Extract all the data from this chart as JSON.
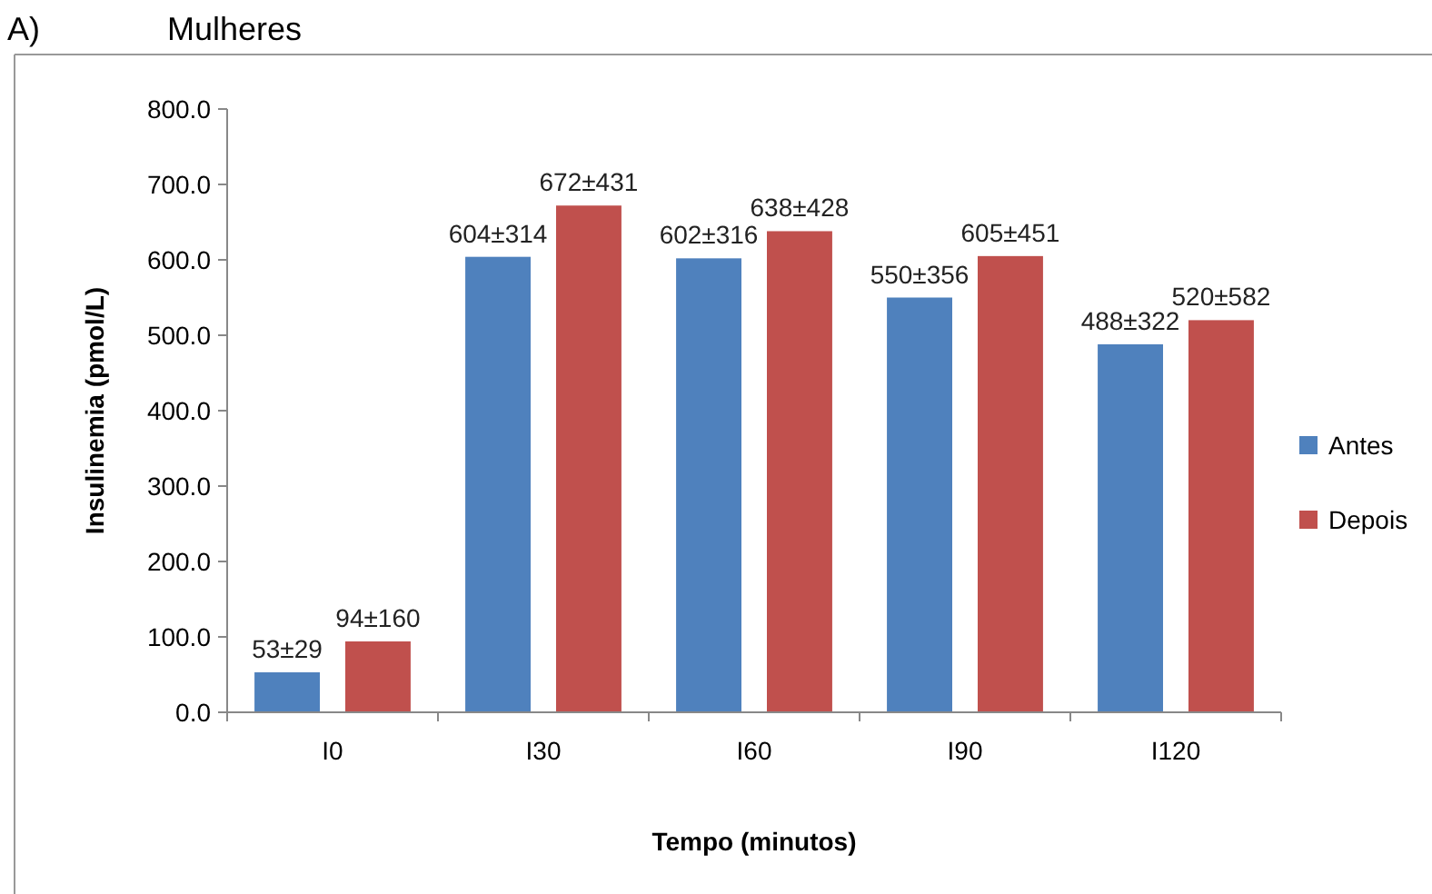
{
  "chart_data": {
    "type": "bar",
    "title": "Mulheres",
    "annotations": [
      "A)"
    ],
    "xlabel": "Tempo (minutos)",
    "ylabel": "Insulinemia (pmol/L)",
    "categories": [
      "I0",
      "I30",
      "I60",
      "I90",
      "I120"
    ],
    "series": [
      {
        "name": "Antes",
        "color": "#4f81bd",
        "values": [
          53,
          604,
          602,
          550,
          488
        ],
        "value_labels": [
          "53±29",
          "604±314",
          "602±316",
          "550±356",
          "488±322"
        ]
      },
      {
        "name": "Depois",
        "color": "#c0504d",
        "values": [
          94,
          672,
          638,
          605,
          520
        ],
        "value_labels": [
          "94±160",
          "672±431",
          "638±428",
          "605±451",
          "520±582"
        ]
      }
    ],
    "ylim": [
      0,
      800
    ],
    "yticks": [
      {
        "value": 0,
        "label": "0.0"
      },
      {
        "value": 100,
        "label": "100.0"
      },
      {
        "value": 200,
        "label": "200.0"
      },
      {
        "value": 300,
        "label": "300.0"
      },
      {
        "value": 400,
        "label": "400.0"
      },
      {
        "value": 500,
        "label": "500.0"
      },
      {
        "value": 600,
        "label": "600.0"
      },
      {
        "value": 700,
        "label": "700.0"
      },
      {
        "value": 800,
        "label": "800.0"
      }
    ],
    "grid": false,
    "legend": "right"
  }
}
